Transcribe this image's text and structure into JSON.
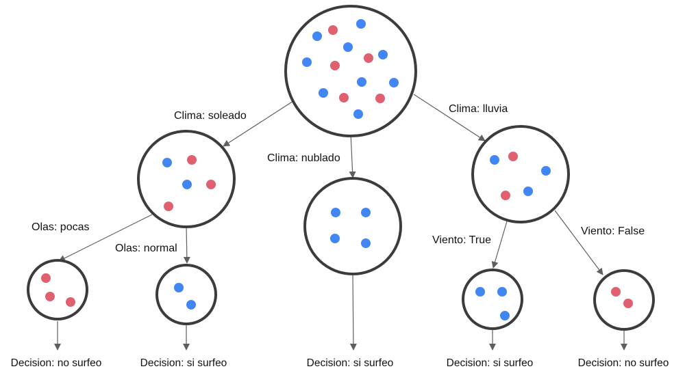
{
  "colors": {
    "blue": "#4285f4",
    "red": "#e06070",
    "node_stroke": "#3c3c3c",
    "edge": "#5f5f5f",
    "text": "#111111"
  },
  "nodes": {
    "root": {
      "dots": [
        "blue",
        "red",
        "blue",
        "blue",
        "red",
        "blue",
        "blue",
        "red",
        "blue",
        "blue",
        "blue",
        "red",
        "red",
        "blue"
      ]
    },
    "soleado": {
      "dots": [
        "blue",
        "red",
        "blue",
        "red",
        "red"
      ]
    },
    "nublado": {
      "dots": [
        "blue",
        "blue",
        "blue",
        "blue"
      ]
    },
    "lluvia": {
      "dots": [
        "blue",
        "red",
        "blue",
        "red",
        "blue"
      ]
    },
    "pocas": {
      "dots": [
        "red",
        "red",
        "red"
      ]
    },
    "normal": {
      "dots": [
        "blue",
        "blue"
      ]
    },
    "true": {
      "dots": [
        "blue",
        "blue",
        "blue"
      ]
    },
    "false": {
      "dots": [
        "red",
        "red"
      ]
    }
  },
  "edges": {
    "clima_soleado": "Clima: soleado",
    "clima_nublado": "Clima: nublado",
    "clima_lluvia": "Clima: lluvia",
    "olas_pocas": "Olas: pocas",
    "olas_normal": "Olas: normal",
    "viento_true": "Viento: True",
    "viento_false": "Viento: False"
  },
  "decisions": {
    "pocas": "Decision: no surfeo",
    "normal": "Decision: si surfeo",
    "nublado": "Decision: si surfeo",
    "true": "Decision: si surfeo",
    "false": "Decision: no surfeo"
  }
}
